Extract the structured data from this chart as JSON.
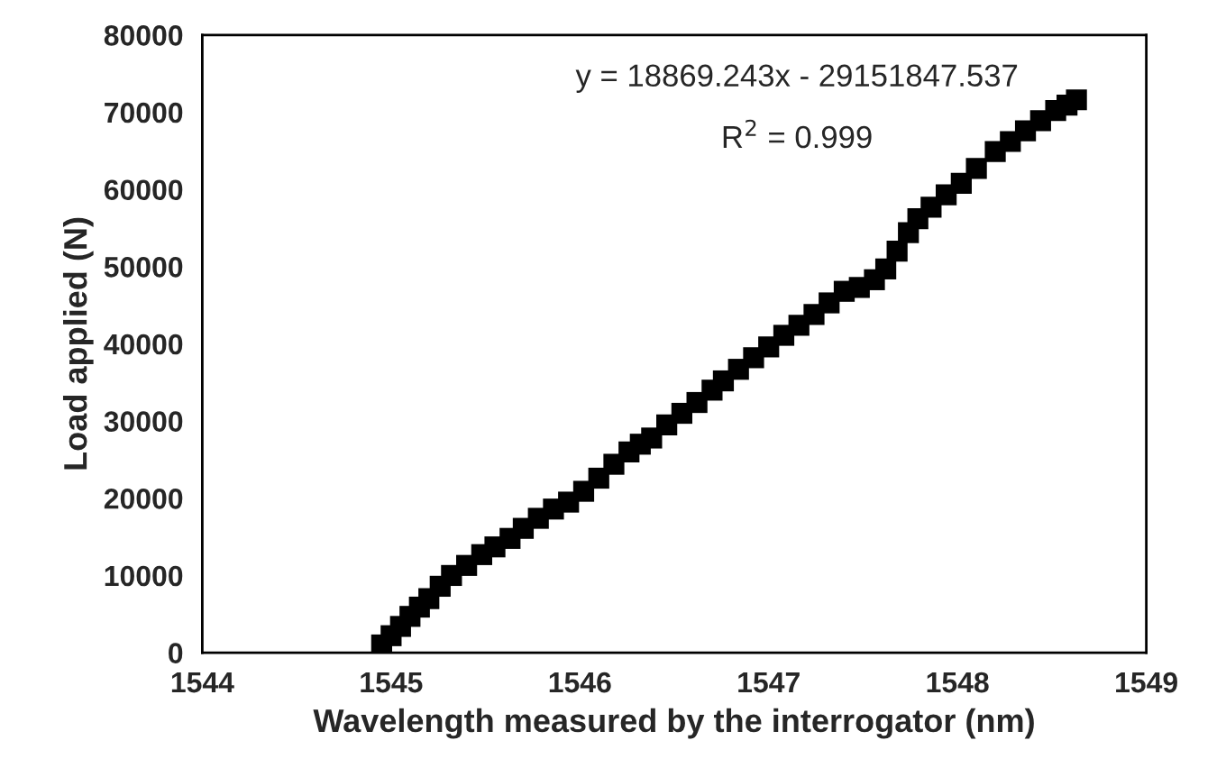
{
  "chart_data": {
    "type": "scatter",
    "xlabel": "Wavelength measured by the interrogator (nm)",
    "ylabel": "Load applied (N)",
    "annotations": [
      "y = 18869.243x - 29151847.537",
      "R$^{2}$ = 0.999"
    ],
    "series": [
      {
        "color": "#000000",
        "x": [
          1544.95,
          1545.0,
          1545.05,
          1545.1,
          1545.15,
          1545.2,
          1545.26,
          1545.32,
          1545.4,
          1545.48,
          1545.55,
          1545.63,
          1545.7,
          1545.78,
          1545.86,
          1545.94,
          1546.02,
          1546.1,
          1546.18,
          1546.26,
          1546.32,
          1546.38,
          1546.46,
          1546.54,
          1546.62,
          1546.7,
          1546.76,
          1546.84,
          1546.92,
          1547.0,
          1547.08,
          1547.16,
          1547.24,
          1547.32,
          1547.4,
          1547.48,
          1547.56,
          1547.62,
          1547.68,
          1547.74,
          1547.79,
          1547.86,
          1547.94,
          1548.02,
          1548.1,
          1548.2,
          1548.28,
          1548.36,
          1548.44,
          1548.52,
          1548.58,
          1548.63
        ],
        "values": [
          1000,
          2200,
          3400,
          4700,
          5900,
          7000,
          8600,
          10000,
          11300,
          12700,
          13700,
          14800,
          16100,
          17400,
          18600,
          19500,
          20900,
          22600,
          24400,
          26000,
          27000,
          27800,
          29500,
          31000,
          32400,
          34000,
          35200,
          36700,
          38200,
          39600,
          41100,
          42400,
          43800,
          45300,
          46800,
          47300,
          48300,
          49700,
          52000,
          54400,
          56200,
          57700,
          59300,
          60800,
          62700,
          64900,
          66200,
          67600,
          68900,
          70200,
          70900,
          71600
        ]
      }
    ],
    "marker": "square",
    "xlim": [
      1544,
      1549
    ],
    "xticks": [
      1544,
      1545,
      1546,
      1547,
      1548,
      1549
    ],
    "ylim": [
      0,
      80000
    ],
    "yticks": [
      0,
      10000,
      20000,
      30000,
      40000,
      50000,
      60000,
      70000,
      80000
    ],
    "grid": false,
    "legend": false
  }
}
